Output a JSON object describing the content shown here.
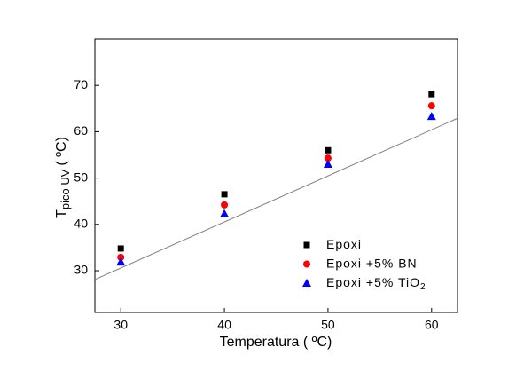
{
  "chart_data": {
    "type": "scatter",
    "x_label": "Temperatura ( ºC)",
    "y_label": {
      "main": "T",
      "sub": "pico UV",
      "unit": "( ºC)"
    },
    "x": [
      30,
      40,
      50,
      60
    ],
    "series": [
      {
        "name": "Epoxi",
        "color": "#000000",
        "marker": "square",
        "values": [
          34.8,
          46.5,
          56.0,
          68.1
        ]
      },
      {
        "name": "Epoxi +5% BN",
        "color": "#ff0000",
        "marker": "circle",
        "values": [
          32.9,
          44.2,
          54.3,
          65.6
        ]
      },
      {
        "name": "Epoxi +5% TiO",
        "name_sub": "2",
        "color": "#0000ff",
        "marker": "triangle",
        "values": [
          31.9,
          42.3,
          53.0,
          63.3
        ]
      }
    ],
    "fit_line": {
      "x": [
        27.5,
        62.5
      ],
      "values": [
        28.1,
        62.9
      ],
      "color": "#808080"
    },
    "xlim": [
      27.5,
      62.5
    ],
    "ylim": [
      21,
      80
    ],
    "xticks": [
      30,
      40,
      50,
      60
    ],
    "yticks": [
      30,
      40,
      50,
      60,
      70
    ],
    "legend": "lower right",
    "grid": false
  }
}
